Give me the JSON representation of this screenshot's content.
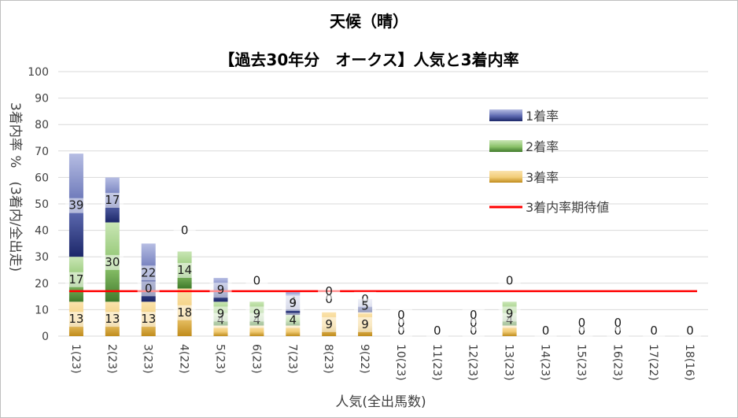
{
  "chart_data": {
    "type": "bar",
    "title": "天候（晴）",
    "subtitle": "【過去30年分　オークス】人気と3着内率",
    "xlabel": "人気(全出馬数)",
    "ylabel": "3着内率 %　(3着内/全出走)",
    "ylim": [
      0,
      100
    ],
    "yticks": [
      "0",
      "10",
      "20",
      "30",
      "40",
      "50",
      "60",
      "70",
      "80",
      "90",
      "100"
    ],
    "categories": [
      "1(23)",
      "2(23)",
      "3(23)",
      "4(22)",
      "5(23)",
      "6(23)",
      "7(23)",
      "8(23)",
      "9(22)",
      "10(23)",
      "11(23)",
      "12(23)",
      "13(23)",
      "14(23)",
      "15(23)",
      "16(23)",
      "17(22)",
      "18(16)"
    ],
    "series": [
      {
        "name": "3着率",
        "values": [
          13,
          13,
          13,
          18,
          4,
          4,
          4,
          9,
          9,
          0,
          0,
          0,
          4,
          0,
          0,
          0,
          0,
          0
        ],
        "labels": [
          "13",
          "13",
          "13",
          "18",
          "4",
          "4",
          "4",
          "9",
          "9",
          "0",
          "0",
          "0",
          "4",
          "0",
          "0",
          "0",
          "0",
          "0"
        ]
      },
      {
        "name": "2着率",
        "values": [
          17,
          30,
          0,
          14,
          9,
          9,
          4,
          0,
          0,
          0,
          0,
          0,
          9,
          0,
          0,
          0,
          0,
          0
        ],
        "labels": [
          "17",
          "30",
          "0",
          "14",
          "9",
          "9",
          "4",
          "0",
          "0",
          "0",
          "",
          "0",
          "9",
          "",
          "0",
          "0",
          "",
          ""
        ]
      },
      {
        "name": "1着率",
        "values": [
          39,
          17,
          22,
          0,
          9,
          0,
          9,
          0,
          5,
          0,
          0,
          0,
          0,
          0,
          0,
          0,
          0,
          0
        ],
        "labels": [
          "39",
          "17",
          "22",
          "0",
          "9",
          "0",
          "9",
          "0",
          "5",
          "0",
          "",
          "0",
          "0",
          "",
          "",
          "",
          "",
          ""
        ]
      }
    ],
    "expected": {
      "name": "3着内率期待値",
      "value": 17
    },
    "colors": {
      "1着率": {
        "light": "#a3acd9",
        "dark": "#1c2769"
      },
      "2着率": {
        "light": "#b8dca0",
        "dark": "#3f7a2b"
      },
      "3着率": {
        "light": "#fbe3ad",
        "dark": "#c08c1c"
      },
      "expected": "#ff0000"
    },
    "legend_position": "upper-right",
    "grid": true
  }
}
